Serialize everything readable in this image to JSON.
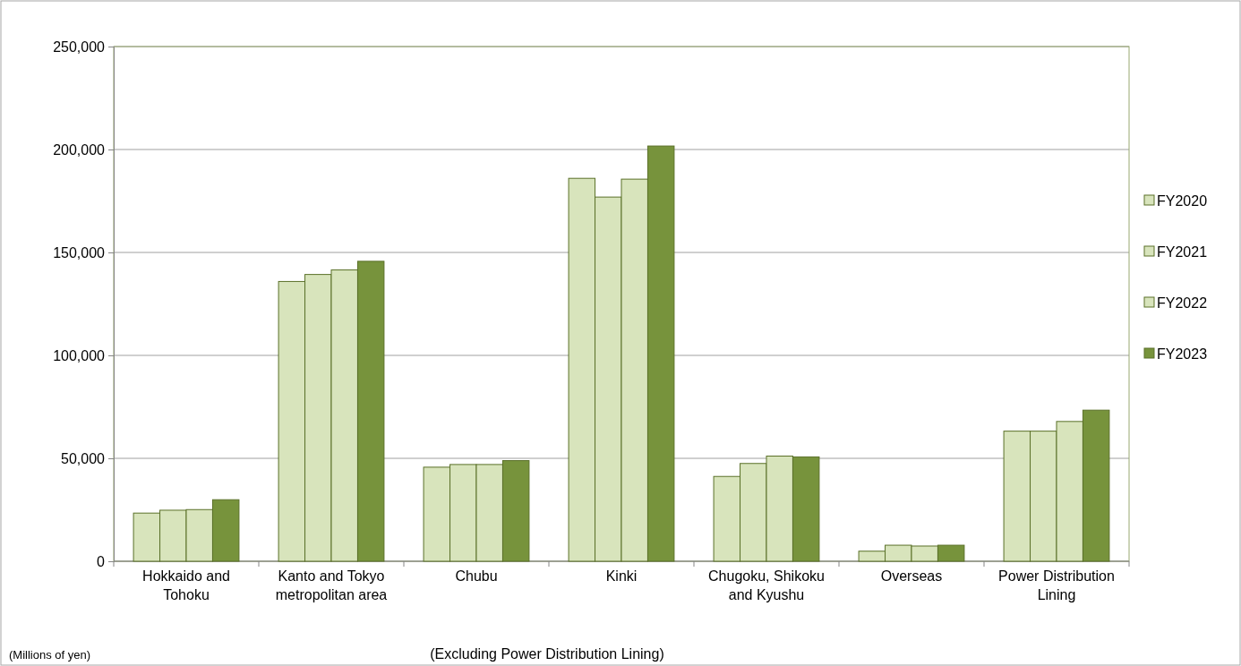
{
  "chart_data": {
    "type": "bar",
    "categories": [
      "Hokkaido and Tohoku",
      "Kanto and Tokyo metropolitan area",
      "Chubu",
      "Kinki",
      "Chugoku, Shikoku and Kyushu",
      "Overseas",
      "Power Distribution Lining"
    ],
    "series": [
      {
        "name": "FY2020",
        "color": "#d8e4bc",
        "values": [
          23400,
          135900,
          45700,
          186000,
          41200,
          4900,
          63200
        ]
      },
      {
        "name": "FY2021",
        "color": "#d8e4bc",
        "values": [
          24800,
          139300,
          47000,
          176900,
          47500,
          7800,
          63200
        ]
      },
      {
        "name": "FY2022",
        "color": "#d8e4bc",
        "values": [
          25100,
          141500,
          47000,
          185600,
          51100,
          7400,
          67900
        ]
      },
      {
        "name": "FY2023",
        "color": "#77933c",
        "values": [
          29900,
          145700,
          48900,
          201700,
          50700,
          7800,
          73400
        ]
      }
    ],
    "ylim": [
      0,
      250000
    ],
    "yticks": [
      {
        "value": 0,
        "label": "0"
      },
      {
        "value": 50000,
        "label": "50,000"
      },
      {
        "value": 100000,
        "label": "100,000"
      },
      {
        "value": 150000,
        "label": "150,000"
      },
      {
        "value": 200000,
        "label": "200,000"
      },
      {
        "value": 250000,
        "label": "250,000"
      }
    ],
    "grid": "y",
    "legend": "right",
    "annotations": [
      "(Millions of yen)",
      "(Excluding Power Distribution Lining)"
    ]
  }
}
